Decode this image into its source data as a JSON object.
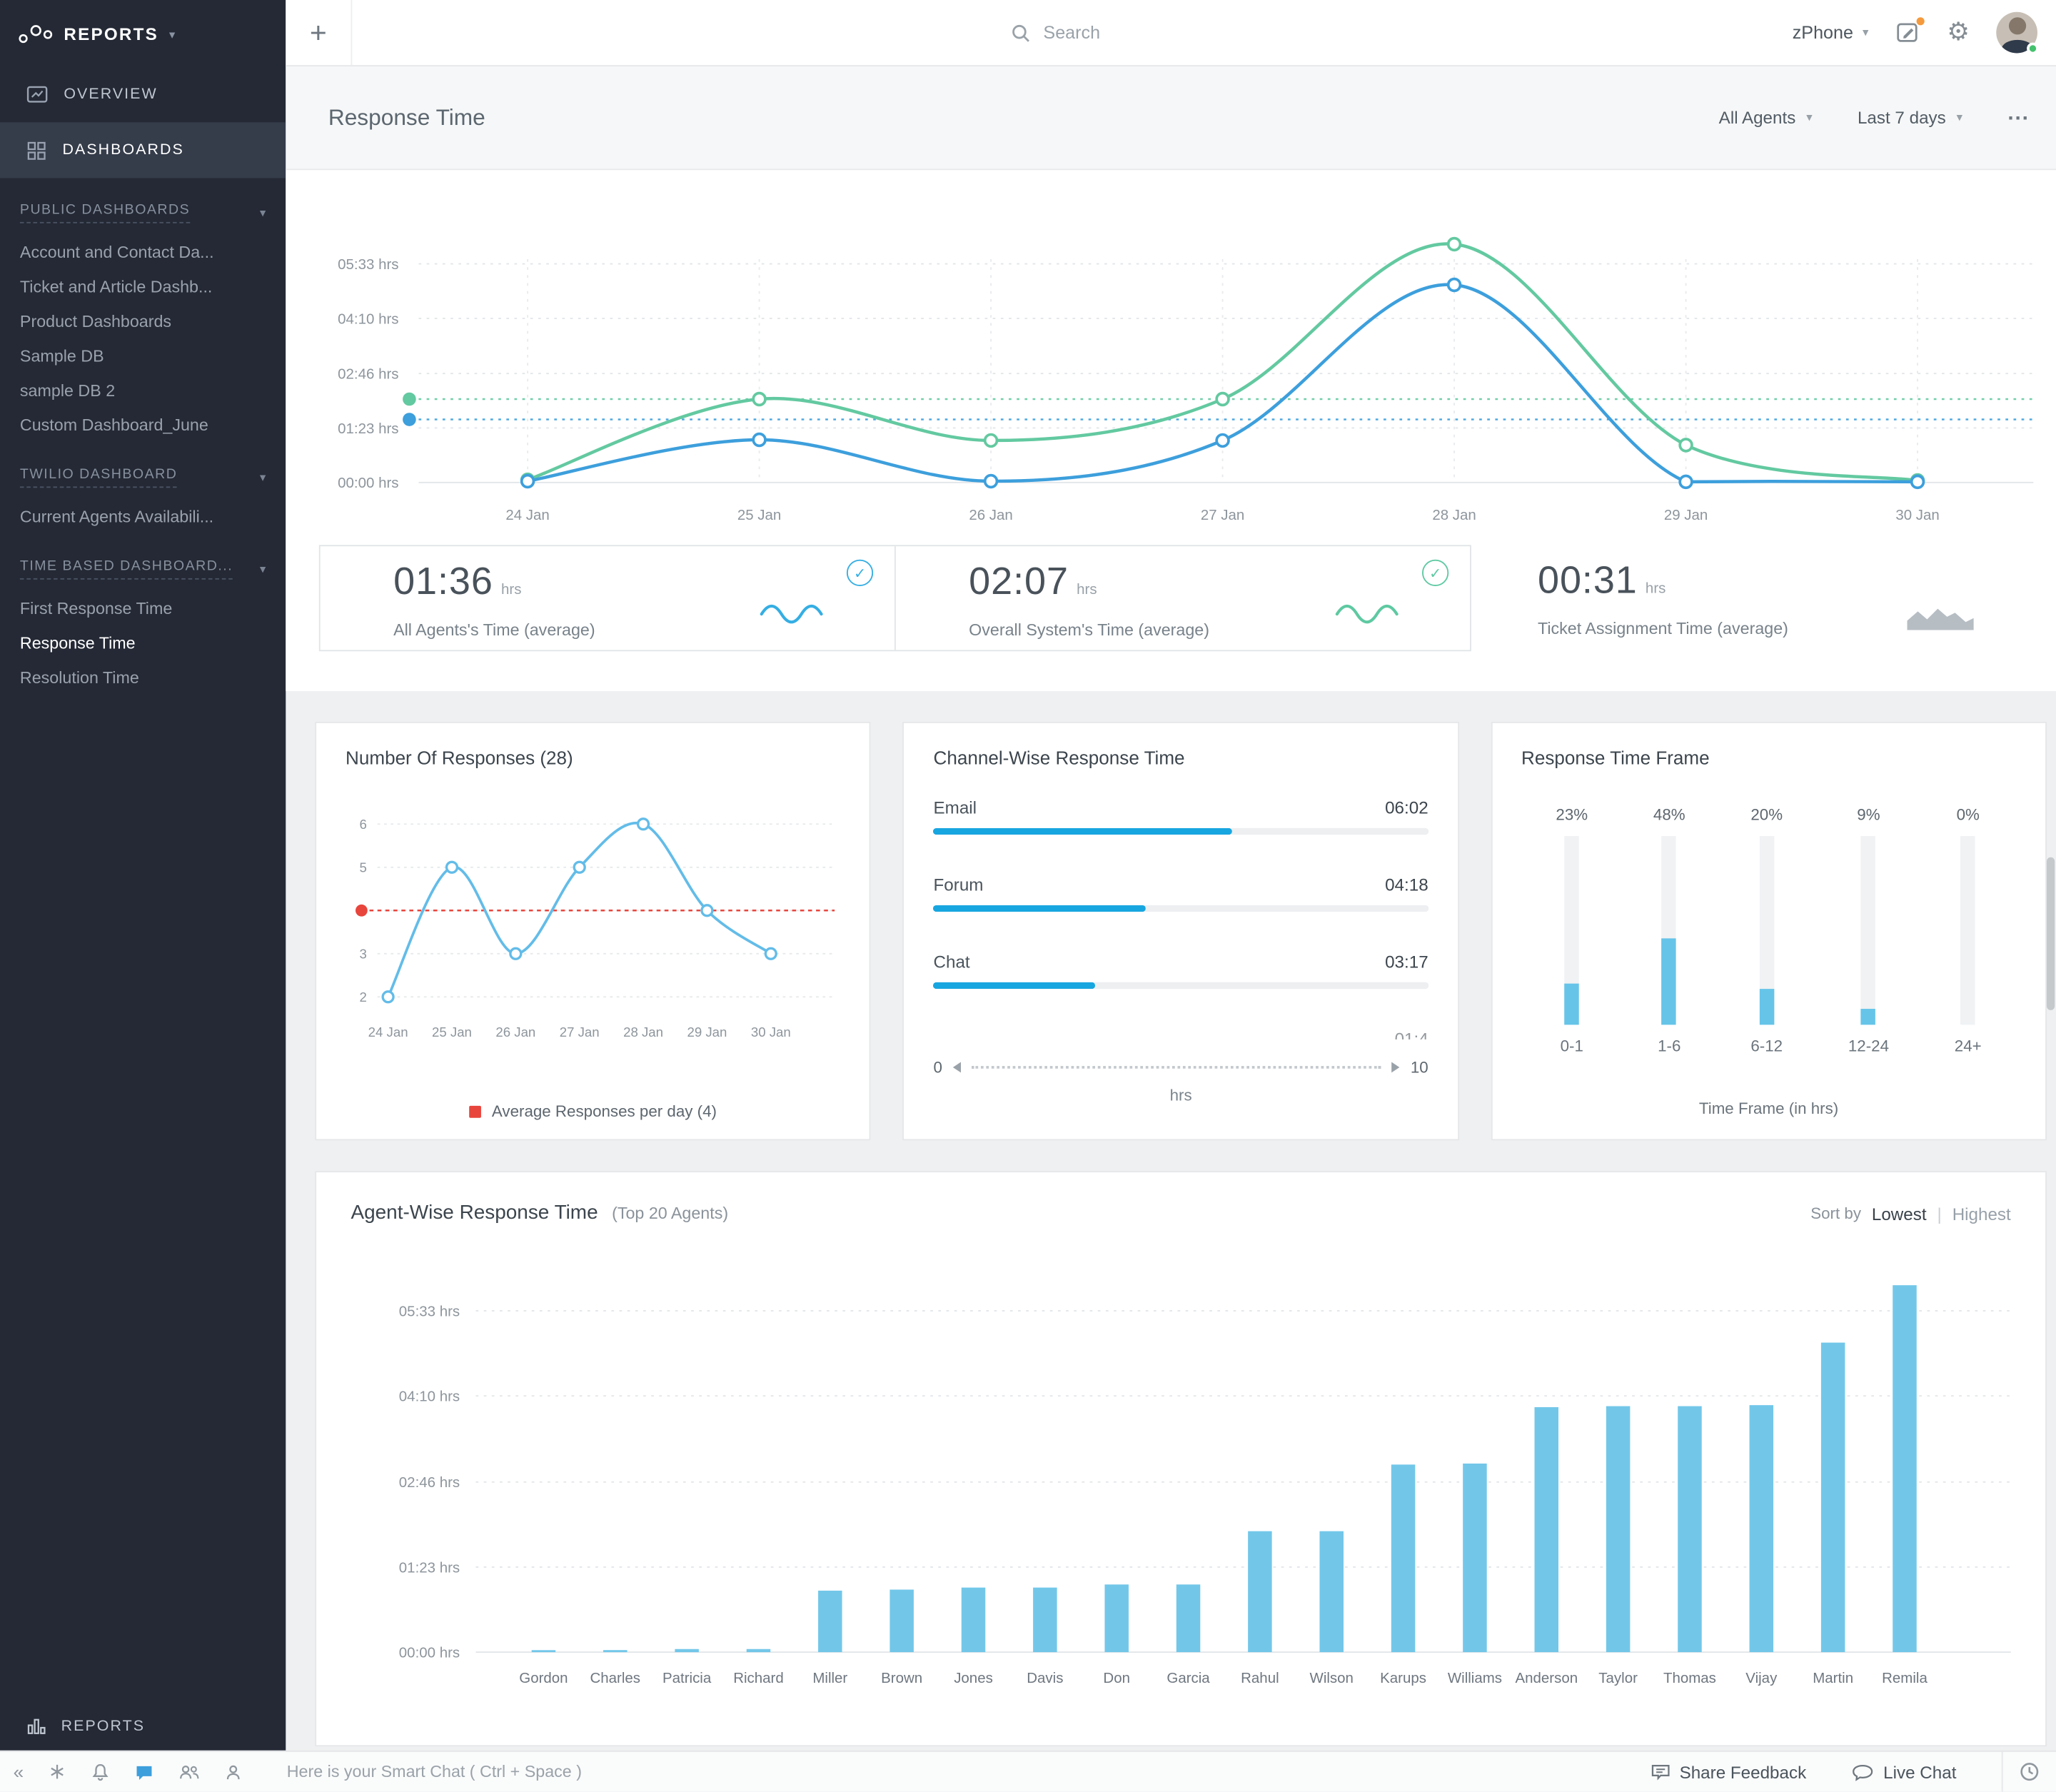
{
  "icons": {
    "caret-down": "▾",
    "plus": "+",
    "check": "✓",
    "collapse": "«",
    "gear": "⚙"
  },
  "brand": {
    "name": "REPORTS"
  },
  "topbar": {
    "search_placeholder": "Search",
    "product": "zPhone"
  },
  "sidebar": {
    "overview": "OVERVIEW",
    "dashboards": "DASHBOARDS",
    "sections": [
      {
        "title": "PUBLIC DASHBOARDS",
        "items": [
          "Account and Contact Da...",
          "Ticket and Article Dashb...",
          "Product Dashboards",
          "Sample DB",
          "sample DB 2",
          "Custom Dashboard_June"
        ]
      },
      {
        "title": "TWILIO DASHBOARD",
        "items": [
          "Current Agents Availabili..."
        ]
      },
      {
        "title": "TIME BASED DASHBOARD...",
        "items": [
          "First Response Time",
          "Response Time",
          "Resolution Time"
        ],
        "active": "Response Time"
      }
    ],
    "bottom_reports": "REPORTS"
  },
  "page": {
    "title": "Response Time",
    "filters": {
      "agents": "All Agents",
      "range": "Last 7 days"
    },
    "more": "..."
  },
  "stats": [
    {
      "value": "01:36",
      "unit": "hrs",
      "label": "All Agents's Time (average)",
      "checked": true,
      "accent": "#35aee3",
      "spark": "wave"
    },
    {
      "value": "02:07",
      "unit": "hrs",
      "label": "Overall System's Time (average)",
      "checked": true,
      "accent": "#5ec9a2",
      "spark": "wave"
    },
    {
      "value": "00:31",
      "unit": "hrs",
      "label": "Ticket Assignment Time (average)",
      "checked": false,
      "accent": "#a9b1b7",
      "spark": "area"
    }
  ],
  "chart_data": [
    {
      "name": "response-time-trend",
      "type": "line",
      "title": "Response Time",
      "x": [
        "24 Jan",
        "25 Jan",
        "26 Jan",
        "27 Jan",
        "28 Jan",
        "29 Jan",
        "30 Jan"
      ],
      "y_ticks": [
        {
          "label": "00:00 hrs",
          "min": 0
        },
        {
          "label": "01:23 hrs",
          "min": 83
        },
        {
          "label": "02:46 hrs",
          "min": 166
        },
        {
          "label": "04:10 hrs",
          "min": 250
        },
        {
          "label": "05:33 hrs",
          "min": 333
        }
      ],
      "series": [
        {
          "name": "All Agents's Time (average)",
          "color": "#3d9fdc",
          "values_min": [
            2,
            65,
            2,
            64,
            301,
            1,
            1
          ],
          "avg_min": 96
        },
        {
          "name": "Overall System's Time (average)",
          "color": "#63c9a0",
          "values_min": [
            4,
            127,
            64,
            127,
            363,
            57,
            3
          ],
          "avg_min": 127
        }
      ]
    },
    {
      "name": "number-of-responses",
      "type": "line",
      "title": "Number Of Responses (28)",
      "x": [
        "24 Jan",
        "25 Jan",
        "26 Jan",
        "27 Jan",
        "28 Jan",
        "29 Jan",
        "30 Jan"
      ],
      "y_ticks": [
        2,
        3,
        4,
        5,
        6
      ],
      "values": [
        2,
        5,
        3,
        5,
        6,
        4,
        3
      ],
      "average": 4,
      "legend": "Average Responses per day (4)",
      "line_color": "#63bce8",
      "avg_color": "#e8453c"
    },
    {
      "name": "channel-wise-response-time",
      "type": "bar",
      "title": "Channel-Wise Response Time",
      "rows": [
        {
          "label": "Email",
          "value": "06:02",
          "hrs": 6.03
        },
        {
          "label": "Forum",
          "value": "04:18",
          "hrs": 4.3
        },
        {
          "label": "Chat",
          "value": "03:17",
          "hrs": 3.28
        }
      ],
      "partial_next_value": "01:4",
      "scale": {
        "min": "0",
        "max": "10",
        "unit": "hrs"
      },
      "bar_color": "#18a6e0"
    },
    {
      "name": "response-time-frame",
      "type": "bar",
      "title": "Response Time Frame",
      "categories": [
        "0-1",
        "1-6",
        "6-12",
        "12-24",
        "24+"
      ],
      "percentages": [
        23,
        48,
        20,
        9,
        0
      ],
      "xlabel": "Time Frame (in hrs)",
      "bar_color": "#66c4e9"
    },
    {
      "name": "agent-wise-response-time",
      "type": "bar",
      "title": "Agent-Wise Response Time",
      "subtitle": "(Top 20 Agents)",
      "sort": {
        "label": "Sort by",
        "options": [
          "Lowest",
          "Highest"
        ],
        "separator": "|",
        "active": "Lowest"
      },
      "y_ticks": [
        {
          "label": "00:00 hrs",
          "min": 0
        },
        {
          "label": "01:23 hrs",
          "min": 83
        },
        {
          "label": "02:46 hrs",
          "min": 166
        },
        {
          "label": "04:10 hrs",
          "min": 250
        },
        {
          "label": "05:33 hrs",
          "min": 333
        }
      ],
      "agents": [
        "Gordon",
        "Charles",
        "Patricia",
        "Richard",
        "Miller",
        "Brown",
        "Jones",
        "Davis",
        "Don",
        "Garcia",
        "Rahul",
        "Wilson",
        "Karups",
        "Williams",
        "Anderson",
        "Taylor",
        "Thomas",
        "Vijay",
        "Martin",
        "Remila"
      ],
      "values_min": [
        1,
        2,
        3,
        3,
        60,
        61,
        63,
        63,
        66,
        66,
        118,
        118,
        183,
        184,
        239,
        240,
        240,
        241,
        302,
        358
      ],
      "bar_color": "#72c7e9"
    }
  ],
  "statusbar": {
    "smart_chat": "Here is your Smart Chat ( Ctrl + Space )",
    "share_feedback": "Share Feedback",
    "live_chat": "Live Chat"
  }
}
